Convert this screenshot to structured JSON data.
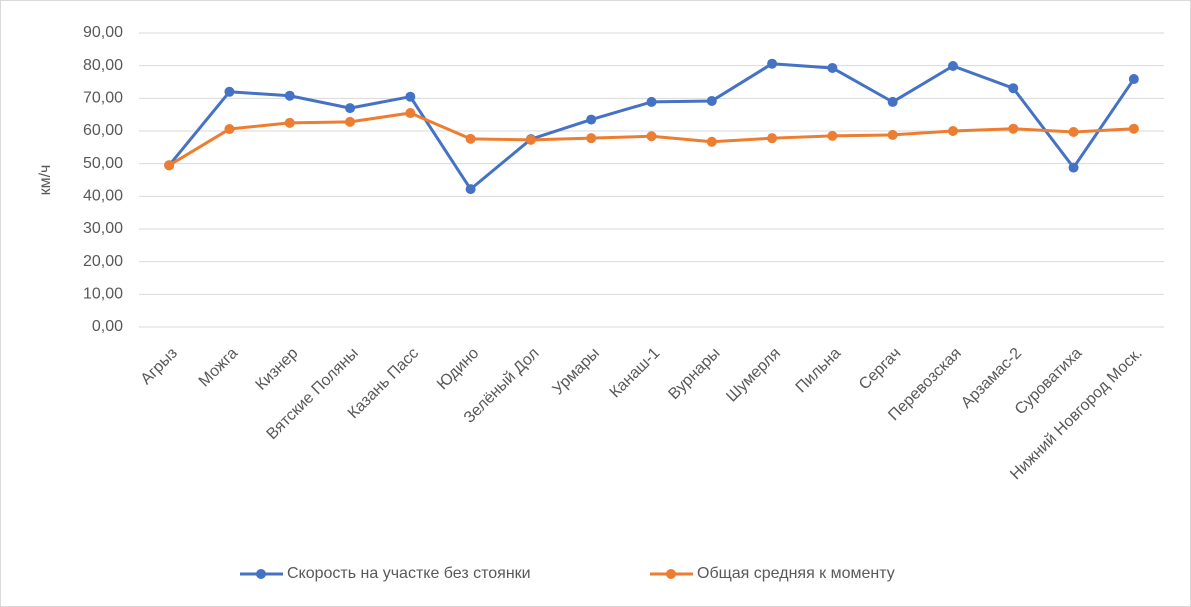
{
  "chart_data": {
    "type": "line",
    "y_label": "км/ч",
    "categories": [
      "Агрыз",
      "Можга",
      "Кизнер",
      "Вятские Поляны",
      "Казань Пасс",
      "Юдино",
      "Зелёный Дол",
      "Урмары",
      "Канаш-1",
      "Вурнары",
      "Шумерля",
      "Пильна",
      "Сергач",
      "Перевозская",
      "Арзамас-2",
      "Суроватиха",
      "Нижний Новгород Моск."
    ],
    "series": [
      {
        "name": "Скорость на участке без стоянки",
        "color": "#4472c4",
        "values": [
          49.5,
          72,
          70.8,
          67,
          70.5,
          42.2,
          57.5,
          63.5,
          68.9,
          69.2,
          80.6,
          79.3,
          68.9,
          79.9,
          73.1,
          48.8,
          75.9
        ]
      },
      {
        "name": "Общая средняя к моменту",
        "color": "#ed7d31",
        "values": [
          49.5,
          60.6,
          62.5,
          62.8,
          65.5,
          57.6,
          57.3,
          57.8,
          58.4,
          56.7,
          57.8,
          58.5,
          58.8,
          60.0,
          60.7,
          59.7,
          60.7
        ]
      }
    ],
    "ylim": [
      0,
      90
    ],
    "yticks": [
      {
        "value": 0,
        "label": "0,00"
      },
      {
        "value": 10,
        "label": "10,00"
      },
      {
        "value": 20,
        "label": "20,00"
      },
      {
        "value": 30,
        "label": "30,00"
      },
      {
        "value": 40,
        "label": "40,00"
      },
      {
        "value": 50,
        "label": "50,00"
      },
      {
        "value": 60,
        "label": "60,00"
      },
      {
        "value": 70,
        "label": "70,00"
      },
      {
        "value": 80,
        "label": "80,00"
      },
      {
        "value": 90,
        "label": "90,00"
      }
    ],
    "grid": true,
    "legend": "bottom"
  }
}
